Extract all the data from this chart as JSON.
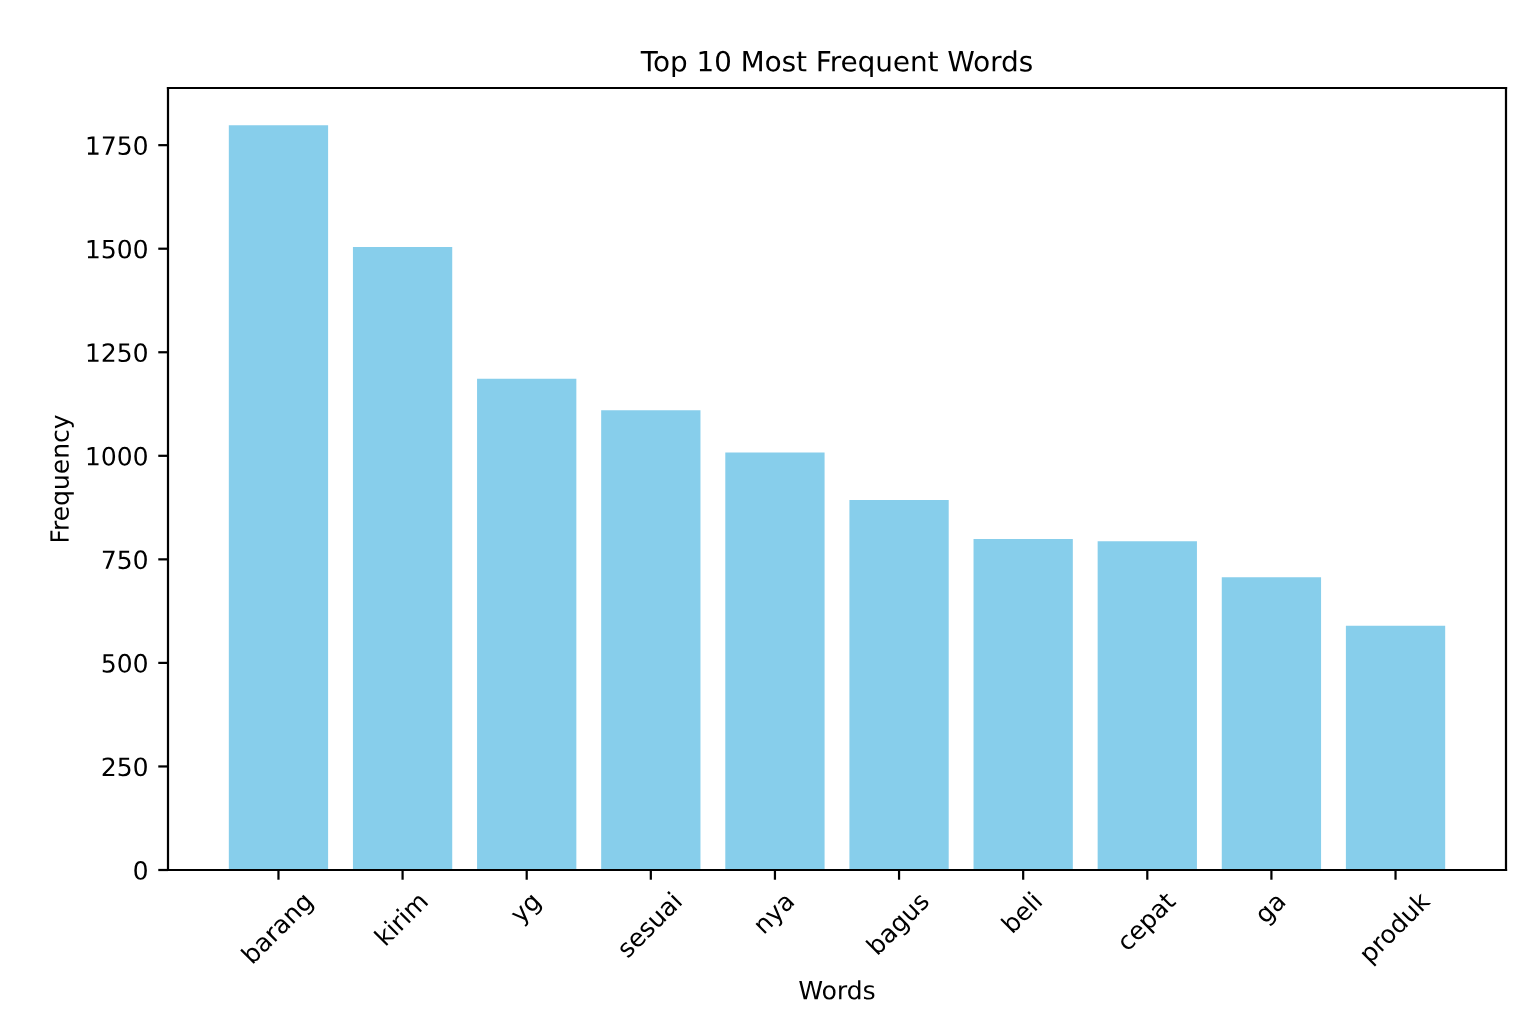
{
  "chart_data": {
    "type": "bar",
    "title": "Top 10 Most Frequent Words",
    "xlabel": "Words",
    "ylabel": "Frequency",
    "categories": [
      "barang",
      "kirim",
      "yg",
      "sesuai",
      "nya",
      "bagus",
      "beli",
      "cepat",
      "ga",
      "produk"
    ],
    "values": [
      1798,
      1504,
      1186,
      1110,
      1008,
      893,
      799,
      794,
      707,
      590
    ],
    "color": "#87ceeb",
    "ylim": [
      0,
      1888
    ],
    "yticks": [
      0,
      250,
      500,
      750,
      1000,
      1250,
      1500,
      1750
    ],
    "grid": false
  }
}
